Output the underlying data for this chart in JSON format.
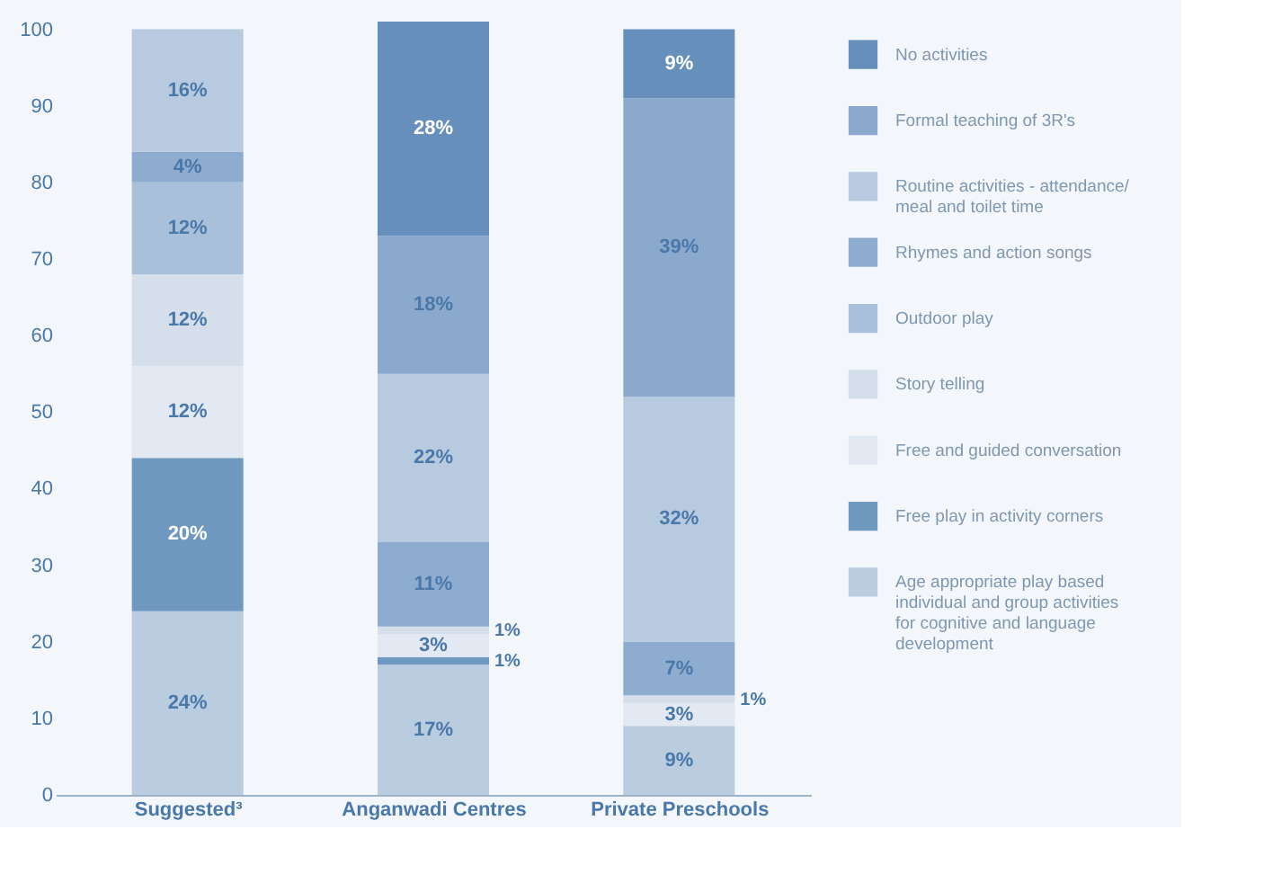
{
  "chart_data": {
    "type": "bar",
    "stacked": true,
    "categories": [
      "Suggested³",
      "Anganwadi Centres",
      "Private Preschools"
    ],
    "ylim": [
      0,
      101
    ],
    "yticks": [
      0,
      10,
      20,
      30,
      40,
      50,
      60,
      70,
      80,
      90,
      100
    ],
    "grid": false,
    "legend": "right",
    "value_labels": [
      [
        "24%",
        "17%",
        "9%"
      ],
      [
        "20%",
        "1%",
        null
      ],
      [
        "12%",
        "3%",
        "3%"
      ],
      [
        "12%",
        "1%",
        "1%"
      ],
      [
        "12%",
        null,
        null
      ],
      [
        "4%",
        "11%",
        "7%"
      ],
      [
        "16%",
        "22%",
        "32%"
      ],
      [
        null,
        "18%",
        "39%"
      ],
      [
        null,
        "28%",
        "9%"
      ]
    ],
    "series": [
      {
        "name": "Age appropriate play based individual and group activities for cognitive and language development",
        "color": "#b9cce0",
        "values": [
          24,
          17,
          9
        ]
      },
      {
        "name": "Free play in activity corners",
        "color": "#7099c2",
        "values": [
          20,
          1,
          null
        ]
      },
      {
        "name": "Free and guided conversation",
        "color": "#e2e9f2",
        "values": [
          12,
          3,
          3
        ]
      },
      {
        "name": "Story telling",
        "color": "#d5dfeb",
        "values": [
          12,
          1,
          1
        ]
      },
      {
        "name": "Outdoor play",
        "color": "#a9c0da",
        "values": [
          12,
          null,
          null
        ]
      },
      {
        "name": "Rhymes and action songs",
        "color": "#8eaccf",
        "values": [
          4,
          11,
          7
        ]
      },
      {
        "name": "Routine activities - attendance/ meal and toilet time",
        "color": "#b7cae0",
        "values": [
          16,
          22,
          32
        ]
      },
      {
        "name": "Formal teaching of 3R's",
        "color": "#8aa9cc",
        "values": [
          null,
          18,
          39
        ]
      },
      {
        "name": "No activities",
        "color": "#6690bb",
        "values": [
          null,
          28,
          9
        ]
      }
    ]
  }
}
